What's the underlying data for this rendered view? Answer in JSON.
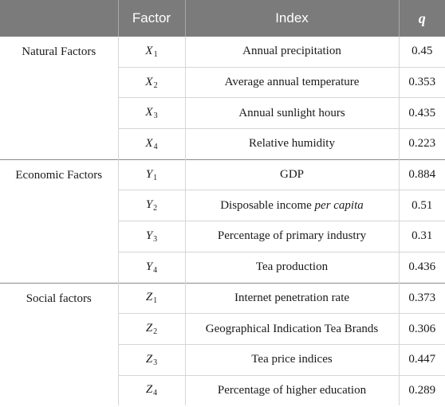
{
  "header": {
    "col0": "",
    "col1": "Factor",
    "col2": "Index",
    "col3": "q"
  },
  "groups": [
    {
      "label": "Natural Factors",
      "rows": [
        {
          "letter": "X",
          "sub": "1",
          "index": "Annual precipitation",
          "index_emph": "",
          "q": "0.45"
        },
        {
          "letter": "X",
          "sub": "2",
          "index": "Average annual temperature",
          "index_emph": "",
          "q": "0.353"
        },
        {
          "letter": "X",
          "sub": "3",
          "index": "Annual sunlight hours",
          "index_emph": "",
          "q": "0.435"
        },
        {
          "letter": "X",
          "sub": "4",
          "index": "Relative humidity",
          "index_emph": "",
          "q": "0.223"
        }
      ]
    },
    {
      "label": "Economic Factors",
      "rows": [
        {
          "letter": "Y",
          "sub": "1",
          "index": "GDP",
          "index_emph": "",
          "q": "0.884"
        },
        {
          "letter": "Y",
          "sub": "2",
          "index": "Disposable income ",
          "index_emph": "per capita",
          "q": "0.51"
        },
        {
          "letter": "Y",
          "sub": "3",
          "index": "Percentage of primary industry",
          "index_emph": "",
          "q": "0.31"
        },
        {
          "letter": "Y",
          "sub": "4",
          "index": "Tea production",
          "index_emph": "",
          "q": "0.436"
        }
      ]
    },
    {
      "label": "Social factors",
      "rows": [
        {
          "letter": "Z",
          "sub": "1",
          "index": "Internet penetration rate",
          "index_emph": "",
          "q": "0.373"
        },
        {
          "letter": "Z",
          "sub": "2",
          "index": "Geographical Indication Tea Brands",
          "index_emph": "",
          "q": "0.306"
        },
        {
          "letter": "Z",
          "sub": "3",
          "index": "Tea price indices",
          "index_emph": "",
          "q": "0.447"
        },
        {
          "letter": "Z",
          "sub": "4",
          "index": "Percentage of higher education",
          "index_emph": "",
          "q": "0.289"
        }
      ]
    }
  ]
}
